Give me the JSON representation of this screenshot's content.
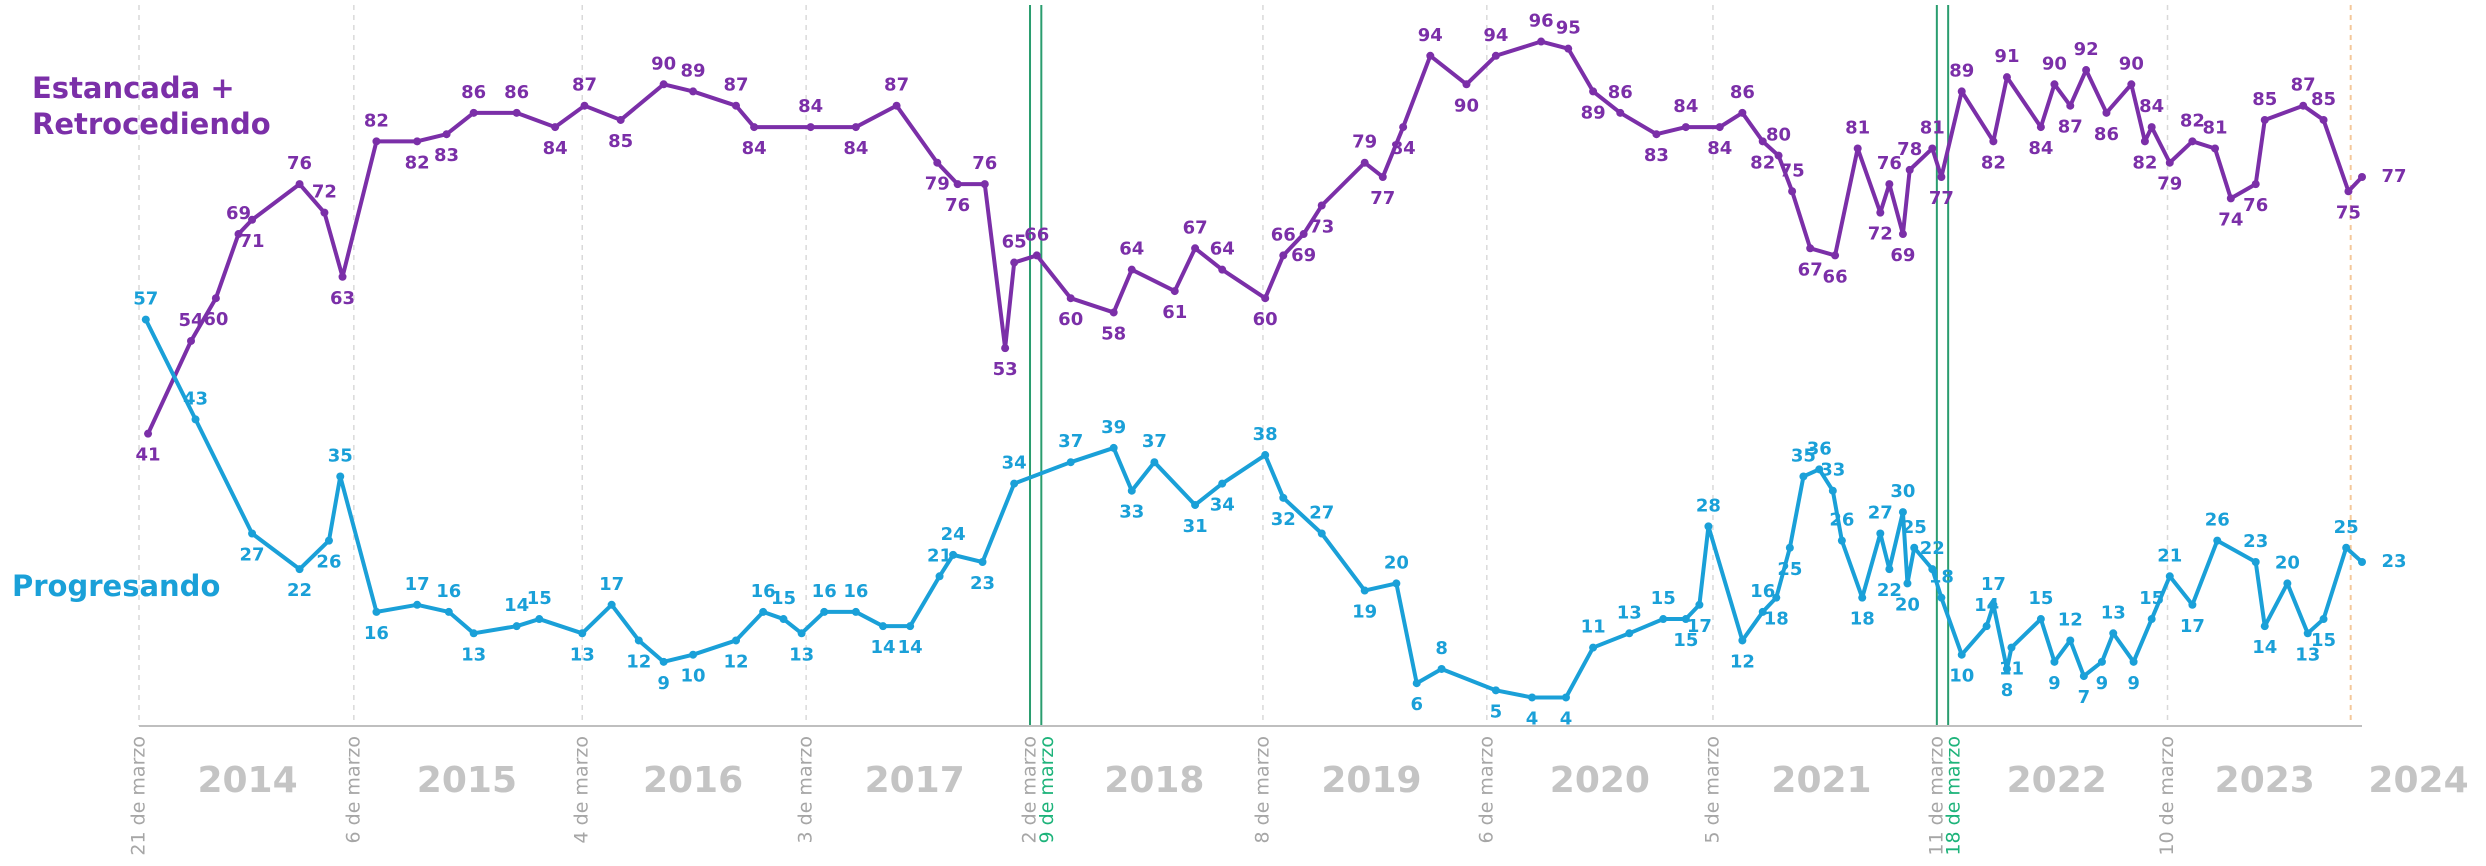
{
  "chart_data": {
    "type": "line",
    "xlim": [
      2013.22,
      2023.05
    ],
    "ylim": [
      0,
      100
    ],
    "grid_color": "#d9d9d9",
    "xticks": [
      {
        "value": 2013.22,
        "label": "21 de marzo"
      },
      {
        "value": 2014.17,
        "label": "6 de marzo"
      },
      {
        "value": 2015.18,
        "label": "4 de marzo"
      },
      {
        "value": 2016.17,
        "label": "3 de marzo"
      },
      {
        "value": 2017.16,
        "label": "2 de marzo",
        "line_color": "#2a9d6f"
      },
      {
        "value": 2017.21,
        "label": "9 de marzo",
        "color": "#1db37a",
        "line_color": "#2a9d6f"
      },
      {
        "value": 2018.19,
        "label": "8 de marzo"
      },
      {
        "value": 2019.18,
        "label": "6 de marzo"
      },
      {
        "value": 2020.18,
        "label": "5 de marzo"
      },
      {
        "value": 2021.17,
        "label": "11 de marzo",
        "line_color": "#2a9d6f"
      },
      {
        "value": 2021.22,
        "label": "18 de marzo",
        "color": "#1db37a",
        "line_color": "#2a9d6f"
      },
      {
        "value": 2022.19,
        "label": "10 de marzo"
      }
    ],
    "year_labels": [
      {
        "value": 2013.7,
        "label": "2014"
      },
      {
        "value": 2014.67,
        "label": "2015"
      },
      {
        "value": 2015.67,
        "label": "2016"
      },
      {
        "value": 2016.65,
        "label": "2017"
      },
      {
        "value": 2017.71,
        "label": "2018"
      },
      {
        "value": 2018.67,
        "label": "2019"
      },
      {
        "value": 2019.68,
        "label": "2020"
      },
      {
        "value": 2020.66,
        "label": "2021"
      },
      {
        "value": 2021.7,
        "label": "2022"
      },
      {
        "value": 2022.62,
        "label": "2023"
      },
      {
        "value": 2023.3,
        "label": "2024"
      }
    ],
    "end_line": {
      "value": 2023.0,
      "color": "#f4c89a"
    },
    "series": [
      {
        "name": "Estancada + Retrocediendo",
        "color": "#7b2fa8",
        "x": [
          2013.26,
          2013.45,
          2013.56,
          2013.66,
          2013.72,
          2013.93,
          2014.04,
          2014.12,
          2014.27,
          2014.45,
          2014.58,
          2014.7,
          2014.89,
          2015.06,
          2015.19,
          2015.35,
          2015.54,
          2015.67,
          2015.86,
          2015.94,
          2016.19,
          2016.39,
          2016.57,
          2016.75,
          2016.84,
          2016.96,
          2017.05,
          2017.09,
          2017.19,
          2017.34,
          2017.53,
          2017.61,
          2017.8,
          2017.89,
          2018.01,
          2018.2,
          2018.28,
          2018.37,
          2018.45,
          2018.64,
          2018.72,
          2018.81,
          2018.93,
          2019.09,
          2019.22,
          2019.42,
          2019.54,
          2019.65,
          2019.77,
          2019.93,
          2020.06,
          2020.21,
          2020.31,
          2020.4,
          2020.47,
          2020.53,
          2020.61,
          2020.72,
          2020.82,
          2020.92,
          2020.96,
          2021.02,
          2021.05,
          2021.15,
          2021.19,
          2021.28,
          2021.42,
          2021.48,
          2021.63,
          2021.69,
          2021.76,
          2021.83,
          2021.92,
          2022.03,
          2022.09,
          2022.12,
          2022.2,
          2022.3,
          2022.4,
          2022.47,
          2022.58,
          2022.62,
          2022.79,
          2022.88,
          2022.99,
          2023.05
        ],
        "values": [
          41,
          54,
          60,
          69,
          71,
          76,
          72,
          63,
          82,
          82,
          83,
          86,
          86,
          84,
          87,
          85,
          90,
          89,
          87,
          84,
          84,
          84,
          87,
          79,
          76,
          76,
          53,
          65,
          66,
          60,
          58,
          64,
          61,
          67,
          64,
          60,
          66,
          69,
          73,
          79,
          77,
          84,
          94,
          90,
          94,
          96,
          95,
          89,
          86,
          83,
          84,
          84,
          86,
          82,
          80,
          75,
          67,
          66,
          81,
          72,
          76,
          69,
          78,
          81,
          77,
          89,
          82,
          91,
          84,
          90,
          87,
          92,
          86,
          90,
          82,
          84,
          79,
          82,
          81,
          74,
          76,
          85,
          87,
          85,
          75,
          77
        ]
      },
      {
        "name": "Progresando",
        "color": "#1aa0d8",
        "x": [
          2013.25,
          2013.47,
          2013.72,
          2013.93,
          2014.06,
          2014.11,
          2014.27,
          2014.45,
          2014.59,
          2014.7,
          2014.89,
          2014.99,
          2015.18,
          2015.31,
          2015.43,
          2015.54,
          2015.67,
          2015.86,
          2015.98,
          2016.07,
          2016.15,
          2016.25,
          2016.39,
          2016.51,
          2016.63,
          2016.76,
          2016.82,
          2016.95,
          2017.09,
          2017.34,
          2017.53,
          2017.61,
          2017.71,
          2017.89,
          2018.01,
          2018.2,
          2018.28,
          2018.45,
          2018.64,
          2018.78,
          2018.87,
          2018.98,
          2019.22,
          2019.38,
          2019.53,
          2019.65,
          2019.81,
          2019.96,
          2020.06,
          2020.12,
          2020.16,
          2020.31,
          2020.4,
          2020.46,
          2020.52,
          2020.58,
          2020.65,
          2020.71,
          2020.75,
          2020.84,
          2020.92,
          2020.96,
          2021.02,
          2021.04,
          2021.07,
          2021.15,
          2021.19,
          2021.28,
          2021.39,
          2021.42,
          2021.48,
          2021.5,
          2021.63,
          2021.69,
          2021.76,
          2021.82,
          2021.9,
          2021.95,
          2022.04,
          2022.12,
          2022.2,
          2022.3,
          2022.41,
          2022.58,
          2022.62,
          2022.72,
          2022.81,
          2022.88,
          2022.98,
          2023.05
        ],
        "values": [
          57,
          43,
          27,
          22,
          26,
          35,
          16,
          17,
          16,
          13,
          14,
          15,
          13,
          17,
          12,
          9,
          10,
          12,
          16,
          15,
          13,
          16,
          16,
          14,
          14,
          21,
          24,
          23,
          34,
          37,
          39,
          33,
          37,
          31,
          34,
          38,
          32,
          27,
          19,
          20,
          6,
          8,
          5,
          4,
          4,
          11,
          13,
          15,
          15,
          17,
          28,
          12,
          16,
          18,
          25,
          35,
          36,
          33,
          26,
          18,
          27,
          22,
          30,
          20,
          25,
          22,
          18,
          10,
          14,
          17,
          8,
          11,
          15,
          9,
          12,
          7,
          9,
          13,
          9,
          15,
          21,
          17,
          26,
          23,
          14,
          20,
          13,
          15,
          25,
          23
        ]
      }
    ]
  }
}
